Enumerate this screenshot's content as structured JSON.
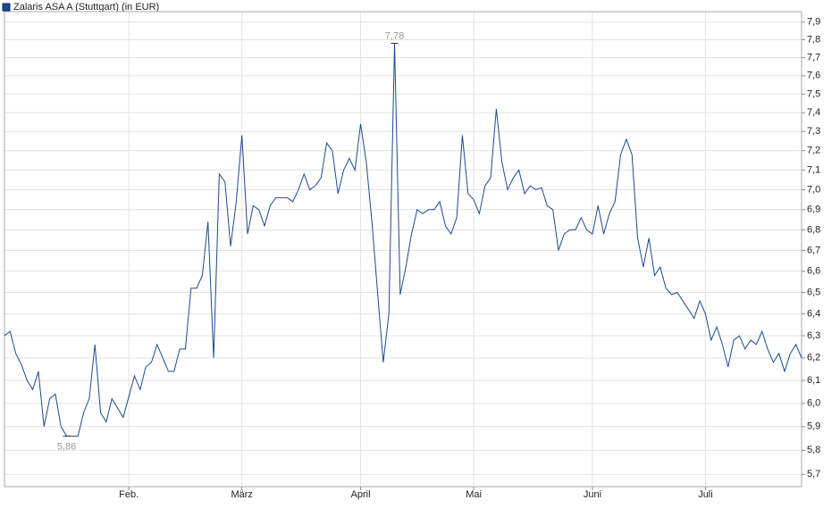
{
  "chart_data": {
    "type": "line",
    "title": "Zalaris ASA A (Stuttgart) (in EUR)",
    "log_scale": true,
    "grid": true,
    "ylim": [
      5.65,
      7.96
    ],
    "yticks": [
      {
        "value": 5.7,
        "label": "5,7"
      },
      {
        "value": 5.8,
        "label": "5,8"
      },
      {
        "value": 5.9,
        "label": "5,9"
      },
      {
        "value": 6.0,
        "label": "6,0"
      },
      {
        "value": 6.1,
        "label": "6,1"
      },
      {
        "value": 6.2,
        "label": "6,2"
      },
      {
        "value": 6.3,
        "label": "6,3"
      },
      {
        "value": 6.4,
        "label": "6,4"
      },
      {
        "value": 6.5,
        "label": "6,5"
      },
      {
        "value": 6.6,
        "label": "6,6"
      },
      {
        "value": 6.7,
        "label": "6,7"
      },
      {
        "value": 6.8,
        "label": "6,8"
      },
      {
        "value": 6.9,
        "label": "6,9"
      },
      {
        "value": 7.0,
        "label": "7,0"
      },
      {
        "value": 7.1,
        "label": "7,1"
      },
      {
        "value": 7.2,
        "label": "7,2"
      },
      {
        "value": 7.3,
        "label": "7,3"
      },
      {
        "value": 7.4,
        "label": "7,4"
      },
      {
        "value": 7.5,
        "label": "7,5"
      },
      {
        "value": 7.6,
        "label": "7,6"
      },
      {
        "value": 7.7,
        "label": "7,7"
      },
      {
        "value": 7.8,
        "label": "7,8"
      },
      {
        "value": 7.9,
        "label": "7,9"
      }
    ],
    "categories": [
      null,
      null,
      null,
      null,
      null,
      null,
      null,
      null,
      null,
      null,
      null,
      null,
      null,
      null,
      null,
      null,
      null,
      null,
      null,
      null,
      null,
      null,
      "Feb.",
      null,
      null,
      null,
      null,
      null,
      null,
      null,
      null,
      null,
      null,
      null,
      null,
      null,
      null,
      null,
      null,
      null,
      null,
      null,
      "März",
      null,
      null,
      null,
      null,
      null,
      null,
      null,
      null,
      null,
      null,
      null,
      null,
      null,
      null,
      null,
      null,
      null,
      null,
      null,
      null,
      "April",
      null,
      null,
      null,
      null,
      null,
      null,
      null,
      null,
      null,
      null,
      null,
      null,
      null,
      null,
      null,
      null,
      null,
      null,
      null,
      "Mai",
      null,
      null,
      null,
      null,
      null,
      null,
      null,
      null,
      null,
      null,
      null,
      null,
      null,
      null,
      null,
      null,
      null,
      null,
      null,
      null,
      "Juni",
      null,
      null,
      null,
      null,
      null,
      null,
      null,
      null,
      null,
      null,
      null,
      null,
      null,
      null,
      null,
      null,
      null,
      null,
      null,
      "Juli",
      null,
      null,
      null,
      null,
      null,
      null,
      null,
      null,
      null,
      null,
      null,
      null,
      null,
      null,
      null,
      null,
      null
    ],
    "series": [
      {
        "name": "Zalaris ASA A (Stuttgart) (in EUR)",
        "color": "#1c4a8f",
        "values": [
          6.3,
          6.32,
          6.22,
          6.17,
          6.1,
          6.06,
          6.14,
          5.9,
          6.02,
          6.04,
          5.9,
          5.86,
          5.86,
          5.86,
          5.96,
          6.02,
          6.26,
          5.96,
          5.92,
          6.02,
          5.98,
          5.94,
          6.03,
          6.12,
          6.06,
          6.16,
          6.18,
          6.26,
          6.2,
          6.14,
          6.14,
          6.24,
          6.24,
          6.52,
          6.52,
          6.58,
          6.84,
          6.2,
          7.08,
          7.04,
          6.72,
          6.94,
          7.28,
          6.78,
          6.92,
          6.9,
          6.82,
          6.92,
          6.96,
          6.96,
          6.96,
          6.94,
          7.0,
          7.08,
          7.0,
          7.02,
          7.06,
          7.24,
          7.2,
          6.98,
          7.1,
          7.16,
          7.1,
          7.34,
          7.14,
          6.84,
          6.5,
          6.18,
          6.4,
          7.78,
          6.49,
          6.62,
          6.78,
          6.9,
          6.88,
          6.9,
          6.9,
          6.94,
          6.82,
          6.78,
          6.86,
          7.28,
          6.98,
          6.95,
          6.88,
          7.02,
          7.06,
          7.42,
          7.14,
          7.0,
          7.06,
          7.1,
          6.98,
          7.02,
          7.0,
          7.01,
          6.92,
          6.9,
          6.7,
          6.78,
          6.8,
          6.8,
          6.86,
          6.8,
          6.78,
          6.92,
          6.78,
          6.88,
          6.94,
          7.18,
          7.26,
          7.18,
          6.76,
          6.62,
          6.76,
          6.58,
          6.62,
          6.52,
          6.49,
          6.5,
          6.46,
          6.42,
          6.38,
          6.46,
          6.4,
          6.28,
          6.34,
          6.26,
          6.16,
          6.28,
          6.3,
          6.24,
          6.28,
          6.26,
          6.32,
          6.24,
          6.18,
          6.22,
          6.14,
          6.22,
          6.26,
          6.2
        ]
      }
    ],
    "annotations": [
      {
        "text": "7,78",
        "value": 7.78
      },
      {
        "text": "5,86",
        "value": 5.86
      }
    ]
  }
}
